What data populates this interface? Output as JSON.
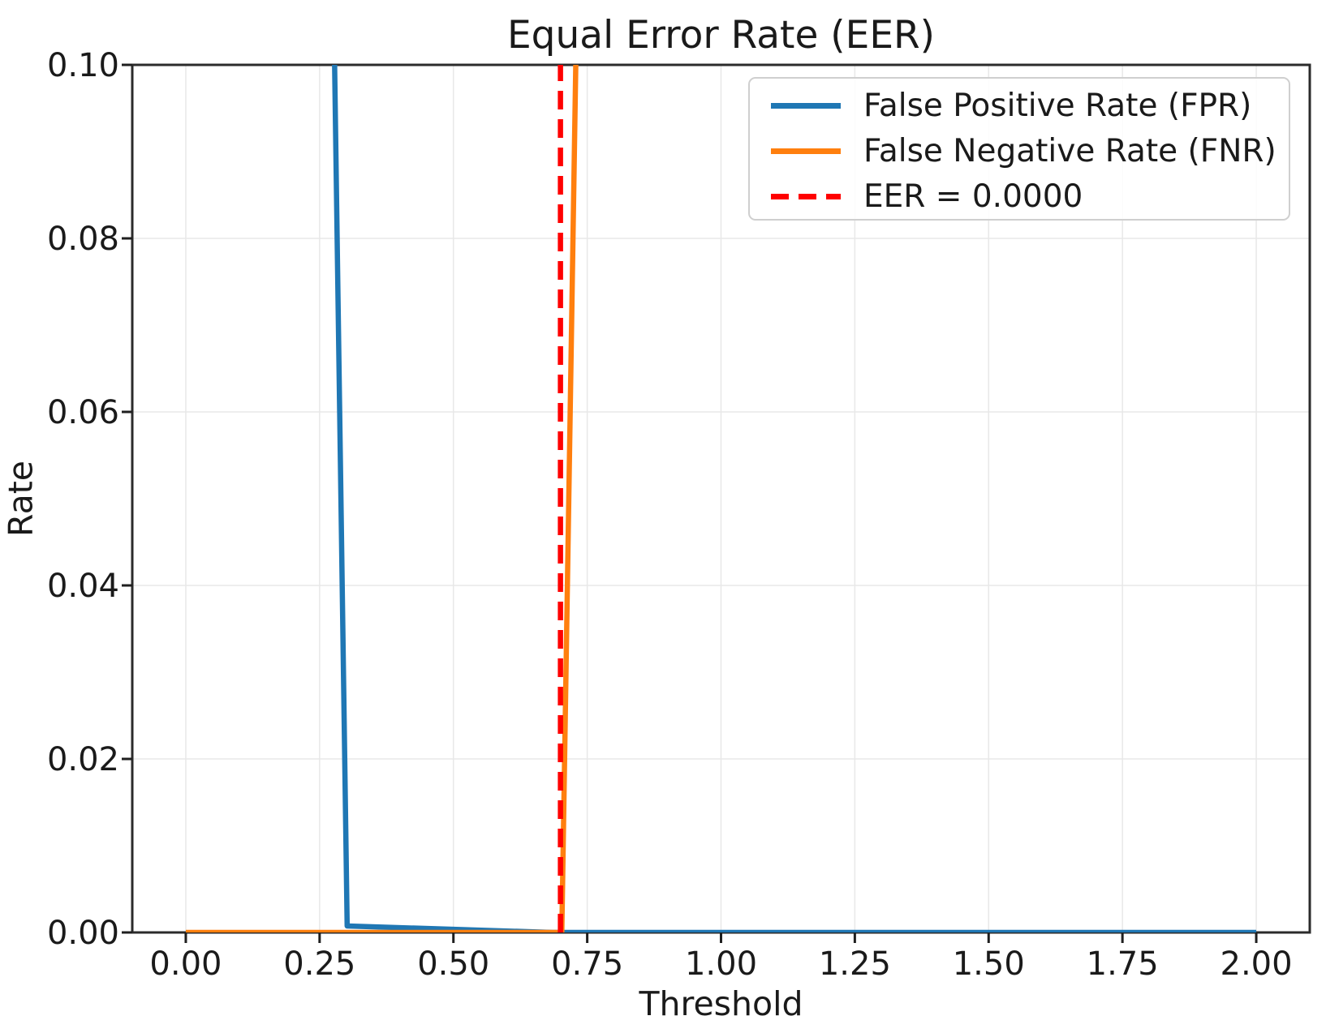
{
  "chart_data": {
    "type": "line",
    "title": "Equal Error Rate (EER)",
    "xlabel": "Threshold",
    "ylabel": "Rate",
    "xlim": [
      -0.1,
      2.1
    ],
    "ylim": [
      0.0,
      0.1
    ],
    "grid": true,
    "legend_position": "upper right",
    "x_tick_values": [
      0.0,
      0.25,
      0.5,
      0.75,
      1.0,
      1.25,
      1.5,
      1.75,
      2.0
    ],
    "x_tick_labels": [
      "0.00",
      "0.25",
      "0.50",
      "0.75",
      "1.00",
      "1.25",
      "1.50",
      "1.75",
      "2.00"
    ],
    "y_tick_values": [
      0.0,
      0.02,
      0.04,
      0.06,
      0.08,
      0.1
    ],
    "y_tick_labels": [
      "0.00",
      "0.02",
      "0.04",
      "0.06",
      "0.08",
      "0.10"
    ],
    "series": [
      {
        "name": "False Positive Rate (FPR)",
        "color": "#1f77b4",
        "line_style": "solid",
        "points": [
          [
            0.2745,
            0.115
          ],
          [
            0.3015,
            0.00075
          ],
          [
            0.685,
            0.0
          ],
          [
            2.0,
            0.0
          ]
        ]
      },
      {
        "name": "False Negative Rate (FNR)",
        "color": "#ff7f0e",
        "line_style": "solid",
        "points": [
          [
            0.0,
            0.0
          ],
          [
            0.7025,
            0.0
          ],
          [
            0.7325,
            0.115
          ]
        ]
      },
      {
        "name": "EER = 0.0000",
        "color": "#ff0000",
        "line_style": "dashed",
        "vline_x": 0.7
      }
    ],
    "eer": {
      "threshold": 0.7,
      "value": "0.0000"
    }
  },
  "colors": {
    "fpr": "#1f77b4",
    "fnr": "#ff7f0e",
    "eer_line": "#ff0000",
    "grid": "#e8e8e8",
    "spine": "#2b2b2b",
    "tick": "#1f1f1f",
    "text": "#1a1a1a",
    "legend_border": "#cfcfcf"
  }
}
